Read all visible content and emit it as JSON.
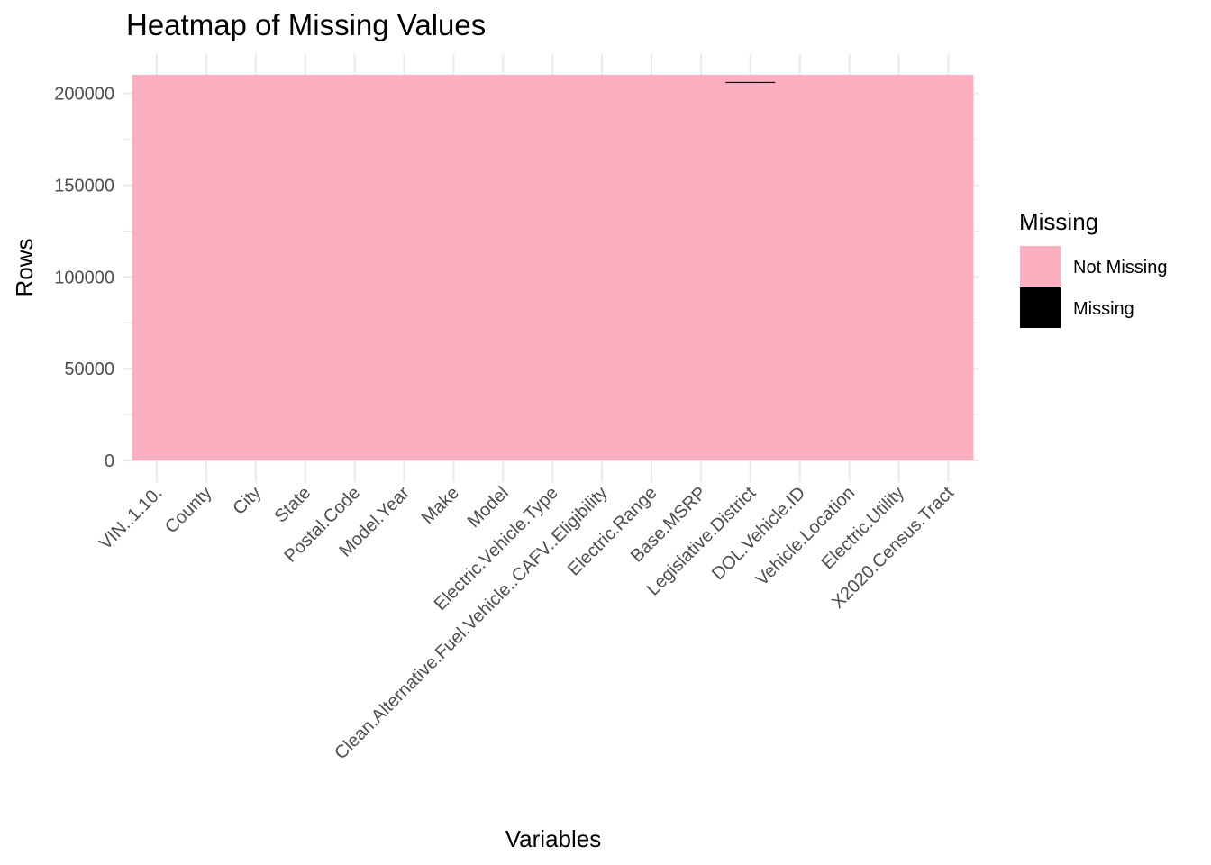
{
  "chart_data": {
    "type": "heatmap",
    "title": "Heatmap of Missing Values",
    "xlabel": "Variables",
    "ylabel": "Rows",
    "categories": [
      "VIN..1.10.",
      "County",
      "City",
      "State",
      "Postal.Code",
      "Model.Year",
      "Make",
      "Model",
      "Electric.Vehicle.Type",
      "Clean.Alternative.Fuel.Vehicle..CAFV..Eligibility",
      "Electric.Range",
      "Base.MSRP",
      "Legislative.District",
      "DOL.Vehicle.ID",
      "Vehicle.Location",
      "Electric.Utility",
      "X2020.Census.Tract"
    ],
    "row_count": 210165,
    "ylim": [
      0,
      210165
    ],
    "yticks": [
      0,
      50000,
      100000,
      150000,
      200000
    ],
    "yticks_minor": [
      25000,
      75000,
      125000,
      175000
    ],
    "missing_segments": [
      {
        "variable": "Legislative.District",
        "row_from": 205800,
        "row_to": 206300
      }
    ],
    "legend": {
      "title": "Missing",
      "position": "right",
      "entries": [
        {
          "label": "Not Missing",
          "color": "#fcafc0"
        },
        {
          "label": "Missing",
          "color": "#000000"
        }
      ]
    },
    "grid": true,
    "colors": {
      "not_missing": "#fcafc0",
      "missing": "#000000",
      "grid": "#ebebeb"
    }
  }
}
